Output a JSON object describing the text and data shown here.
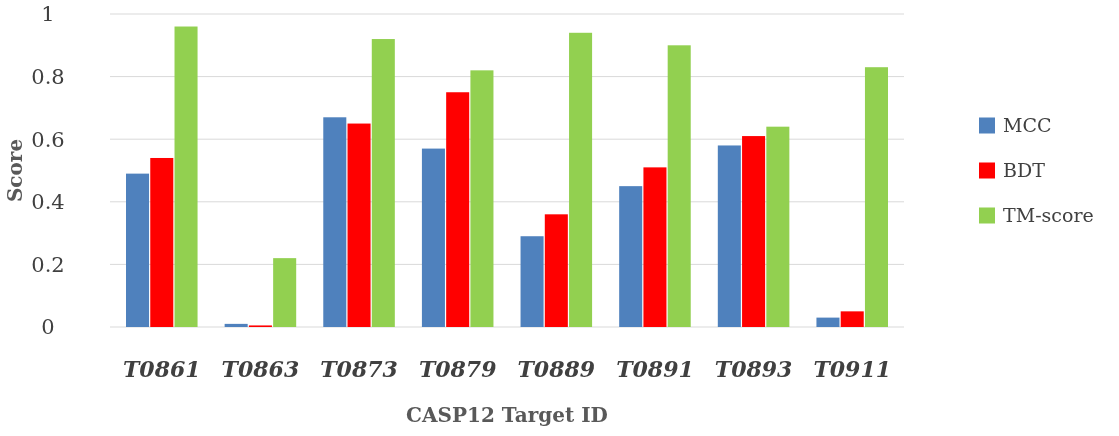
{
  "chart_data": {
    "type": "bar",
    "xlabel": "CASP12 Target ID",
    "ylabel": "Score",
    "categories": [
      "T0861",
      "T0863",
      "T0873",
      "T0879",
      "T0889",
      "T0891",
      "T0893",
      "T0911"
    ],
    "series": [
      {
        "name": "MCC",
        "color": "#4f81bd",
        "values": [
          0.49,
          0.01,
          0.67,
          0.57,
          0.29,
          0.45,
          0.58,
          0.03
        ]
      },
      {
        "name": "BDT",
        "color": "#ff0000",
        "values": [
          0.54,
          0.005,
          0.65,
          0.75,
          0.36,
          0.51,
          0.61,
          0.05
        ]
      },
      {
        "name": "TM-score",
        "color": "#92d050",
        "values": [
          0.96,
          0.22,
          0.92,
          0.82,
          0.94,
          0.9,
          0.64,
          0.83
        ]
      }
    ],
    "ylim": [
      0,
      1
    ],
    "yticks": [
      0,
      0.2,
      0.4,
      0.6,
      0.8,
      1
    ],
    "grid": "y",
    "legend": "right"
  }
}
